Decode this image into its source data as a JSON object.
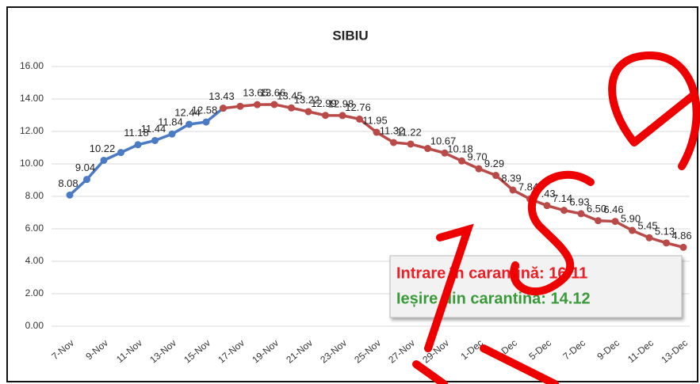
{
  "chart_data": {
    "type": "line",
    "title": "SIBIU",
    "categories": [
      "7-Nov",
      null,
      "9-Nov",
      null,
      "11-Nov",
      null,
      "13-Nov",
      null,
      "15-Nov",
      null,
      "17-Nov",
      null,
      "19-Nov",
      null,
      "21-Nov",
      null,
      "23-Nov",
      null,
      "25-Nov",
      null,
      "27-Nov",
      null,
      "29-Nov",
      null,
      "1-Dec",
      null,
      "3-Dec",
      null,
      "5-Dec",
      null,
      "7-Dec",
      null,
      "9-Dec",
      null,
      "11-Dec",
      null,
      "13-Dec"
    ],
    "series": [
      {
        "color": "#4a7bc4",
        "values": [
          8.08,
          9.04,
          10.22,
          10.7,
          11.18,
          11.44,
          11.84,
          12.44,
          12.58,
          13.43,
          null,
          null,
          null,
          null,
          null,
          null,
          null,
          null,
          null,
          null,
          null,
          null,
          null,
          null,
          null,
          null,
          null,
          null,
          null,
          null,
          null,
          null,
          null,
          null,
          null,
          null,
          null
        ],
        "value_labels": [
          "8.08",
          "9.04",
          "10.22",
          null,
          "11.18",
          "11.44",
          "11.84",
          "12.44",
          "12.58",
          null,
          null,
          null,
          null,
          null,
          null,
          null,
          null,
          null,
          null,
          null,
          null,
          null,
          null,
          null,
          null,
          null,
          null,
          null,
          null,
          null,
          null,
          null,
          null,
          null,
          null,
          null,
          null
        ]
      },
      {
        "color": "#b94a48",
        "values": [
          null,
          null,
          null,
          null,
          null,
          null,
          null,
          null,
          null,
          13.43,
          13.55,
          13.65,
          13.66,
          13.45,
          13.22,
          12.99,
          12.98,
          12.76,
          11.95,
          11.32,
          11.22,
          10.95,
          10.67,
          10.18,
          9.7,
          9.29,
          8.39,
          7.84,
          7.43,
          7.14,
          6.93,
          6.5,
          6.46,
          5.9,
          5.45,
          5.13,
          4.86
        ],
        "value_labels": [
          null,
          null,
          null,
          null,
          null,
          null,
          null,
          null,
          null,
          "13.43",
          null,
          "13.65",
          "13.66",
          "13.45",
          "13.22",
          "12.99",
          "12.98",
          "12.76",
          "11.95",
          "11.32",
          "11.22",
          null,
          "10.67",
          "10.18",
          "9.70",
          "9.29",
          "8.39",
          "7.84",
          "7.43",
          "7.14",
          "6.93",
          "6.50",
          "6.46",
          "5.90",
          "5.45",
          "5.13",
          "4.86"
        ]
      }
    ],
    "ylim": [
      0,
      16
    ],
    "yticks": [
      {
        "value": 0,
        "label": "0.00"
      },
      {
        "value": 2,
        "label": "2.00"
      },
      {
        "value": 4,
        "label": "4.00"
      },
      {
        "value": 6,
        "label": "6.00"
      },
      {
        "value": 8,
        "label": "8.00"
      },
      {
        "value": 10,
        "label": "10.00"
      },
      {
        "value": 12,
        "label": "12.00"
      },
      {
        "value": 14,
        "label": "14.00"
      },
      {
        "value": 16,
        "label": "16.00"
      }
    ],
    "grid": true,
    "annotations": [
      {
        "text": "Intrare în carantină: 16.11",
        "color": "#ee1c25"
      },
      {
        "text": "Ieșire din carantină: 14.12",
        "color": "#3a9a3a"
      }
    ]
  }
}
